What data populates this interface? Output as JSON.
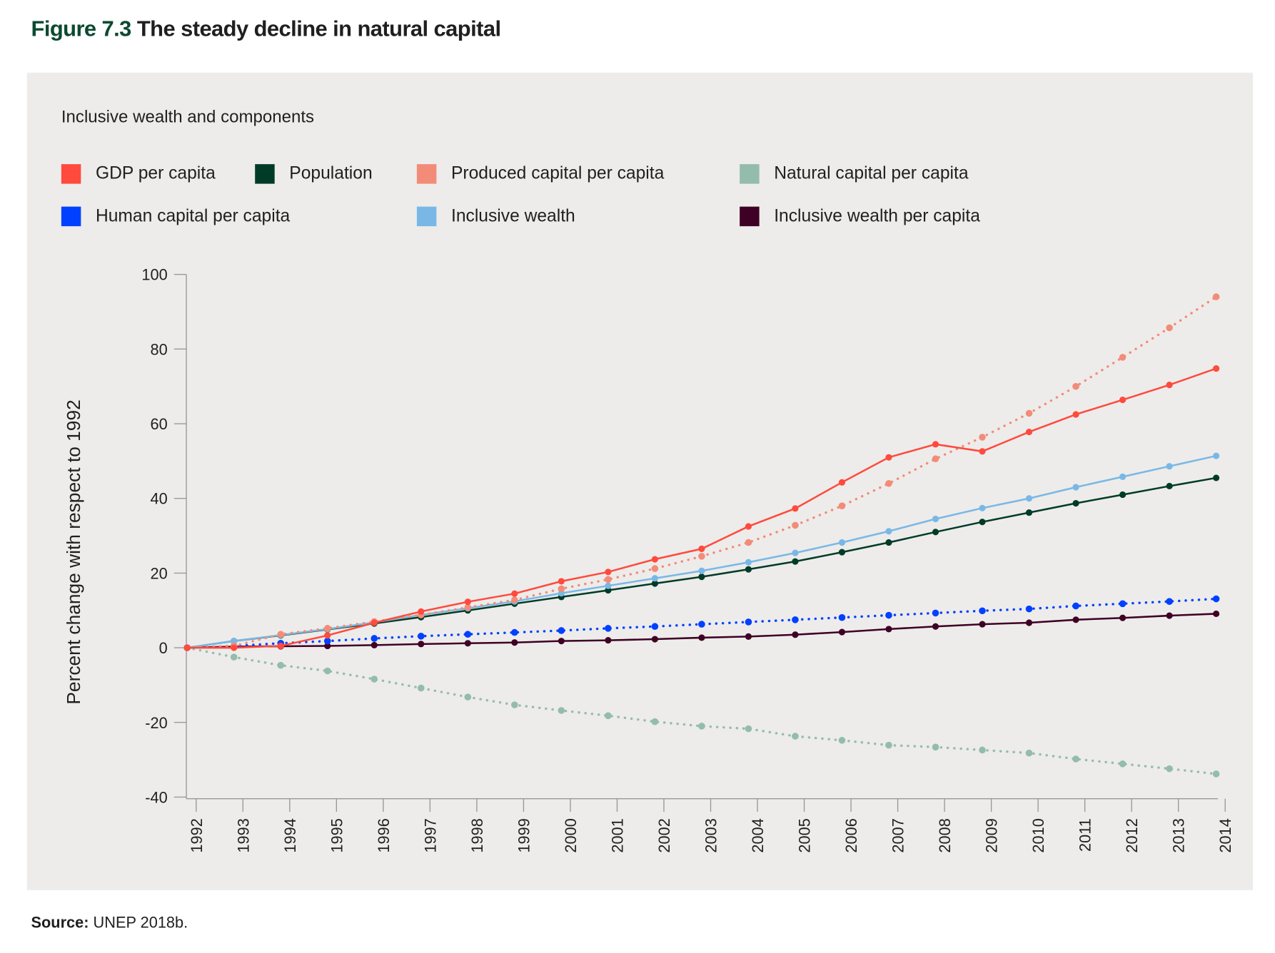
{
  "figure_label": "Figure 7.3",
  "figure_title": "The steady decline in natural capital",
  "source_label": "Source:",
  "source_text": "UNEP 2018b.",
  "chart_data": {
    "type": "line",
    "title": "Inclusive wealth and components",
    "xlabel": "",
    "ylabel": "Percent change with respect to 1992",
    "ylim": [
      -40,
      100
    ],
    "yticks": [
      100,
      80,
      60,
      40,
      20,
      0,
      -20,
      -40
    ],
    "x": [
      "1992",
      "1993",
      "1994",
      "1995",
      "1996",
      "1997",
      "1998",
      "1999",
      "2000",
      "2001",
      "2002",
      "2003",
      "2004",
      "2005",
      "2006",
      "2007",
      "2008",
      "2009",
      "2010",
      "2011",
      "2012",
      "2013",
      "2014"
    ],
    "legend_position": "top",
    "series": [
      {
        "name": "GDP per capita",
        "color": "#ff4a3d",
        "style": "solid",
        "values": [
          0,
          0,
          0.5,
          3.3,
          6.7,
          9.7,
          12.3,
          14.5,
          17.8,
          20.3,
          23.7,
          26.5,
          32.5,
          37.3,
          44.3,
          51,
          54.5,
          52.6,
          57.8,
          62.5,
          66.4,
          70.4,
          74.8
        ]
      },
      {
        "name": "Population",
        "color": "#003b28",
        "style": "solid",
        "values": [
          0,
          1.8,
          3.3,
          4.9,
          6.5,
          8.2,
          10,
          11.8,
          13.6,
          15.4,
          17.2,
          19,
          21,
          23.1,
          25.6,
          28.2,
          31,
          33.7,
          36.2,
          38.7,
          41,
          43.3,
          45.5
        ]
      },
      {
        "name": "Produced capital per capita",
        "color": "#f28c78",
        "style": "dotted",
        "values": [
          0,
          0.5,
          3.6,
          5.2,
          7,
          8.8,
          10.8,
          12.8,
          15.8,
          18.3,
          21.2,
          24.5,
          28.2,
          32.8,
          38,
          44,
          50.6,
          56.4,
          62.8,
          70,
          77.8,
          85.7,
          94
        ]
      },
      {
        "name": "Natural capital per capita",
        "color": "#94bcae",
        "style": "dotted",
        "values": [
          0,
          -2.5,
          -4.7,
          -6.2,
          -8.4,
          -10.8,
          -13.2,
          -15.3,
          -16.8,
          -18.2,
          -19.8,
          -21,
          -21.7,
          -23.7,
          -24.8,
          -26.1,
          -26.6,
          -27.4,
          -28.2,
          -29.8,
          -31.1,
          -32.4,
          -33.8
        ]
      },
      {
        "name": "Human capital per capita",
        "color": "#0040ff",
        "style": "dotted",
        "values": [
          0,
          0.5,
          1.2,
          1.8,
          2.5,
          3.1,
          3.6,
          4.1,
          4.6,
          5.2,
          5.7,
          6.3,
          6.9,
          7.5,
          8.1,
          8.7,
          9.3,
          9.9,
          10.4,
          11.2,
          11.8,
          12.4,
          13.1
        ]
      },
      {
        "name": "Inclusive wealth",
        "color": "#79b8e6",
        "style": "solid",
        "values": [
          0,
          1.8,
          3.4,
          5,
          6.8,
          8.8,
          10.6,
          12.4,
          14.6,
          16.6,
          18.6,
          20.6,
          22.9,
          25.4,
          28.2,
          31.2,
          34.5,
          37.4,
          40,
          43,
          45.8,
          48.6,
          51.4
        ]
      },
      {
        "name": "Inclusive wealth per capita",
        "color": "#3f0025",
        "style": "solid",
        "values": [
          0,
          0.3,
          0.4,
          0.5,
          0.7,
          1,
          1.2,
          1.4,
          1.8,
          2,
          2.3,
          2.7,
          3,
          3.5,
          4.2,
          5,
          5.7,
          6.3,
          6.7,
          7.5,
          8,
          8.6,
          9.1
        ]
      }
    ]
  }
}
